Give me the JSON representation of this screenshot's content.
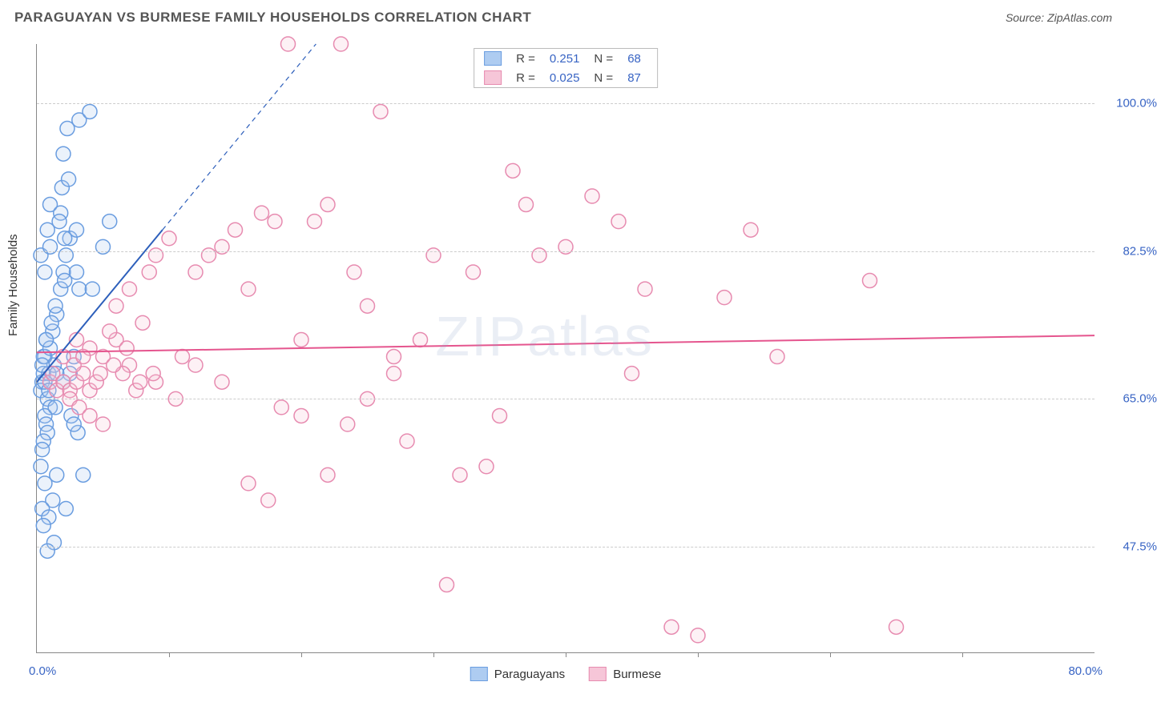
{
  "title": "PARAGUAYAN VS BURMESE FAMILY HOUSEHOLDS CORRELATION CHART",
  "source_label": "Source: ZipAtlas.com",
  "watermark": "ZIPatlas",
  "ylabel": "Family Households",
  "chart": {
    "type": "scatter",
    "xlim": [
      0,
      80
    ],
    "ylim": [
      35,
      107
    ],
    "x_start_label": "0.0%",
    "x_end_label": "80.0%",
    "x_ticks": [
      10,
      20,
      30,
      40,
      50,
      60,
      70
    ],
    "y_gridlines": [
      47.5,
      65.0,
      82.5,
      100.0
    ],
    "y_tick_labels": [
      "47.5%",
      "65.0%",
      "82.5%",
      "100.0%"
    ],
    "background_color": "#ffffff",
    "grid_color": "#cccccc",
    "axis_color": "#888888",
    "tick_label_color": "#3864c4",
    "marker_radius": 9,
    "marker_stroke_width": 1.5,
    "marker_fill_opacity": 0.25,
    "series": [
      {
        "name": "Paraguayans",
        "color_stroke": "#6a9de0",
        "color_fill": "#aeccf1",
        "r_value": "0.251",
        "n_value": "68",
        "trend": {
          "x1": 0,
          "y1": 67,
          "x2": 9.5,
          "y2": 85,
          "dash_to_y": 107,
          "color": "#2d5fbb",
          "width": 2,
          "dash_width": 1.2
        },
        "points": [
          [
            0.4,
            67
          ],
          [
            0.5,
            68
          ],
          [
            0.6,
            70
          ],
          [
            0.7,
            72
          ],
          [
            0.3,
            66
          ],
          [
            0.8,
            65
          ],
          [
            1.0,
            64
          ],
          [
            1.2,
            73
          ],
          [
            1.5,
            75
          ],
          [
            0.9,
            68
          ],
          [
            0.5,
            70
          ],
          [
            1.3,
            69
          ],
          [
            1.0,
            71
          ],
          [
            2.0,
            80
          ],
          [
            2.2,
            82
          ],
          [
            2.5,
            84
          ],
          [
            3.0,
            85
          ],
          [
            3.2,
            98
          ],
          [
            4.0,
            99
          ],
          [
            1.8,
            78
          ],
          [
            2.1,
            79
          ],
          [
            1.4,
            76
          ],
          [
            0.6,
            63
          ],
          [
            0.7,
            62
          ],
          [
            0.8,
            61
          ],
          [
            0.5,
            60
          ],
          [
            0.4,
            59
          ],
          [
            0.3,
            57
          ],
          [
            0.6,
            55
          ],
          [
            1.2,
            53
          ],
          [
            2.5,
            68
          ],
          [
            2.8,
            70
          ],
          [
            3.2,
            78
          ],
          [
            5.0,
            83
          ],
          [
            5.5,
            86
          ],
          [
            1.9,
            90
          ],
          [
            1.0,
            88
          ],
          [
            1.8,
            87
          ],
          [
            2.4,
            91
          ],
          [
            2.0,
            94
          ],
          [
            2.3,
            97
          ],
          [
            2.1,
            84
          ],
          [
            3.0,
            80
          ],
          [
            4.2,
            78
          ],
          [
            2.6,
            63
          ],
          [
            3.1,
            61
          ],
          [
            3.5,
            56
          ],
          [
            1.5,
            56
          ],
          [
            0.4,
            52
          ],
          [
            0.9,
            51
          ],
          [
            2.2,
            52
          ],
          [
            1.3,
            48
          ],
          [
            0.8,
            47
          ],
          [
            0.5,
            50
          ],
          [
            0.7,
            72
          ],
          [
            1.1,
            74
          ],
          [
            0.6,
            80
          ],
          [
            0.3,
            82
          ],
          [
            1.5,
            68
          ],
          [
            2.0,
            67
          ],
          [
            0.8,
            85
          ],
          [
            1.0,
            83
          ],
          [
            1.7,
            86
          ],
          [
            2.8,
            62
          ],
          [
            0.6,
            67
          ],
          [
            0.9,
            66
          ],
          [
            1.4,
            64
          ],
          [
            0.4,
            69
          ]
        ]
      },
      {
        "name": "Burmese",
        "color_stroke": "#e78bb0",
        "color_fill": "#f6c6d8",
        "r_value": "0.025",
        "n_value": "87",
        "trend": {
          "x1": 0,
          "y1": 70.5,
          "x2": 80,
          "y2": 72.5,
          "color": "#e5558e",
          "width": 2
        },
        "points": [
          [
            1.0,
            67
          ],
          [
            1.2,
            68
          ],
          [
            1.5,
            66
          ],
          [
            2.0,
            67
          ],
          [
            2.5,
            66
          ],
          [
            3.0,
            67
          ],
          [
            3.5,
            68
          ],
          [
            4.0,
            66
          ],
          [
            4.5,
            67
          ],
          [
            5.0,
            70
          ],
          [
            6.0,
            72
          ],
          [
            7.0,
            69
          ],
          [
            8.0,
            74
          ],
          [
            9.0,
            82
          ],
          [
            10.0,
            84
          ],
          [
            11.0,
            70
          ],
          [
            12.0,
            80
          ],
          [
            13.0,
            82
          ],
          [
            14.0,
            83
          ],
          [
            15.0,
            85
          ],
          [
            16.0,
            78
          ],
          [
            17.0,
            87
          ],
          [
            18.0,
            86
          ],
          [
            19.0,
            107
          ],
          [
            20.0,
            72
          ],
          [
            21.0,
            86
          ],
          [
            22.0,
            88
          ],
          [
            23.0,
            107
          ],
          [
            24.0,
            80
          ],
          [
            25.0,
            76
          ],
          [
            26.0,
            99
          ],
          [
            27.0,
            68
          ],
          [
            28.0,
            60
          ],
          [
            29.0,
            72
          ],
          [
            30.0,
            82
          ],
          [
            31.0,
            43
          ],
          [
            32.0,
            56
          ],
          [
            33.0,
            80
          ],
          [
            34.0,
            57
          ],
          [
            35.0,
            63
          ],
          [
            36.0,
            92
          ],
          [
            37.0,
            88
          ],
          [
            38.0,
            82
          ],
          [
            40.0,
            83
          ],
          [
            42.0,
            89
          ],
          [
            44.0,
            86
          ],
          [
            45.0,
            68
          ],
          [
            46.0,
            78
          ],
          [
            48.0,
            38
          ],
          [
            50.0,
            37
          ],
          [
            52.0,
            77
          ],
          [
            54.0,
            85
          ],
          [
            56.0,
            70
          ],
          [
            63.0,
            79
          ],
          [
            65.0,
            38
          ],
          [
            2.5,
            65
          ],
          [
            3.2,
            64
          ],
          [
            4.0,
            63
          ],
          [
            5.0,
            62
          ],
          [
            6.5,
            68
          ],
          [
            7.5,
            66
          ],
          [
            9.0,
            67
          ],
          [
            10.5,
            65
          ],
          [
            12.0,
            69
          ],
          [
            14.0,
            67
          ],
          [
            16.0,
            55
          ],
          [
            17.5,
            53
          ],
          [
            18.5,
            64
          ],
          [
            20.0,
            63
          ],
          [
            22.0,
            56
          ],
          [
            23.5,
            62
          ],
          [
            25.0,
            65
          ],
          [
            27.0,
            70
          ],
          [
            2.0,
            70
          ],
          [
            3.0,
            72
          ],
          [
            4.0,
            71
          ],
          [
            5.5,
            73
          ],
          [
            6.0,
            76
          ],
          [
            7.0,
            78
          ],
          [
            8.5,
            80
          ],
          [
            2.8,
            69
          ],
          [
            3.5,
            70
          ],
          [
            4.8,
            68
          ],
          [
            5.8,
            69
          ],
          [
            6.8,
            71
          ],
          [
            7.8,
            67
          ],
          [
            8.8,
            68
          ]
        ]
      }
    ],
    "series_legend_labels": [
      "Paraguayans",
      "Burmese"
    ]
  }
}
